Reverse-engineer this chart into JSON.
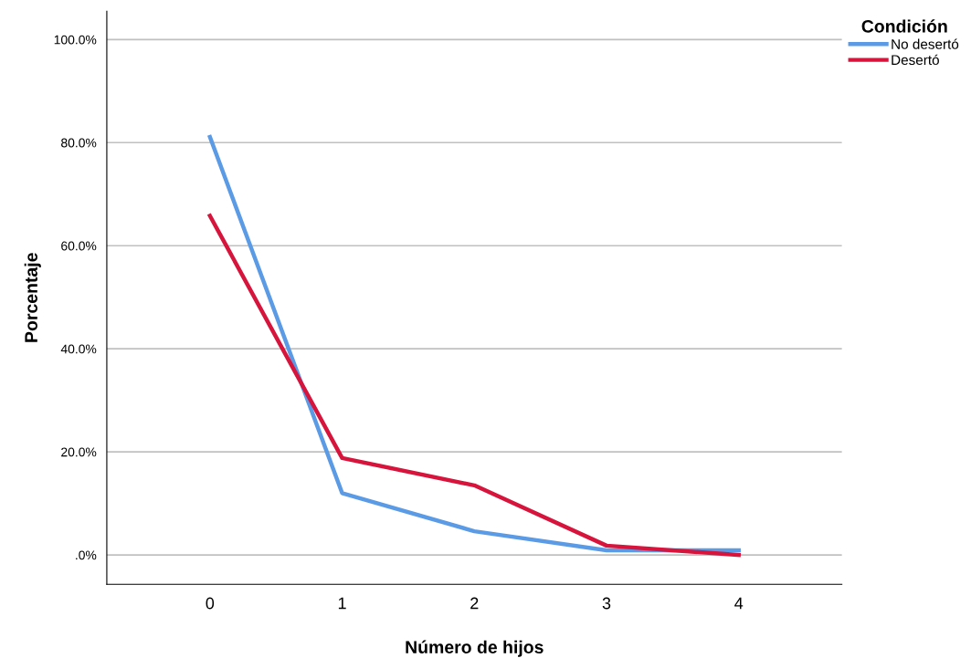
{
  "chart_data": {
    "type": "line",
    "xlabel": "Número de hijos",
    "ylabel": "Porcentaje",
    "legend_title": "Condición",
    "categories": [
      "0",
      "1",
      "2",
      "3",
      "4"
    ],
    "series": [
      {
        "name": "No desertó",
        "color": "#5b9be6",
        "values": [
          81.1,
          12.0,
          4.6,
          0.9,
          0.9
        ]
      },
      {
        "name": "Desertó",
        "color": "#d6143c",
        "values": [
          65.8,
          18.8,
          13.5,
          1.8,
          0.0
        ]
      }
    ],
    "ylim": [
      -5.7,
      105.5
    ],
    "yticks": [
      {
        "value": 0,
        "label": ".0%"
      },
      {
        "value": 20,
        "label": "20.0%"
      },
      {
        "value": 40,
        "label": "40.0%"
      },
      {
        "value": 60,
        "label": "60.0%"
      },
      {
        "value": 80,
        "label": "80.0%"
      },
      {
        "value": 100,
        "label": "100.0%"
      }
    ],
    "grid": "y",
    "legend": "top right",
    "marker": "none",
    "line_style": "solid"
  }
}
